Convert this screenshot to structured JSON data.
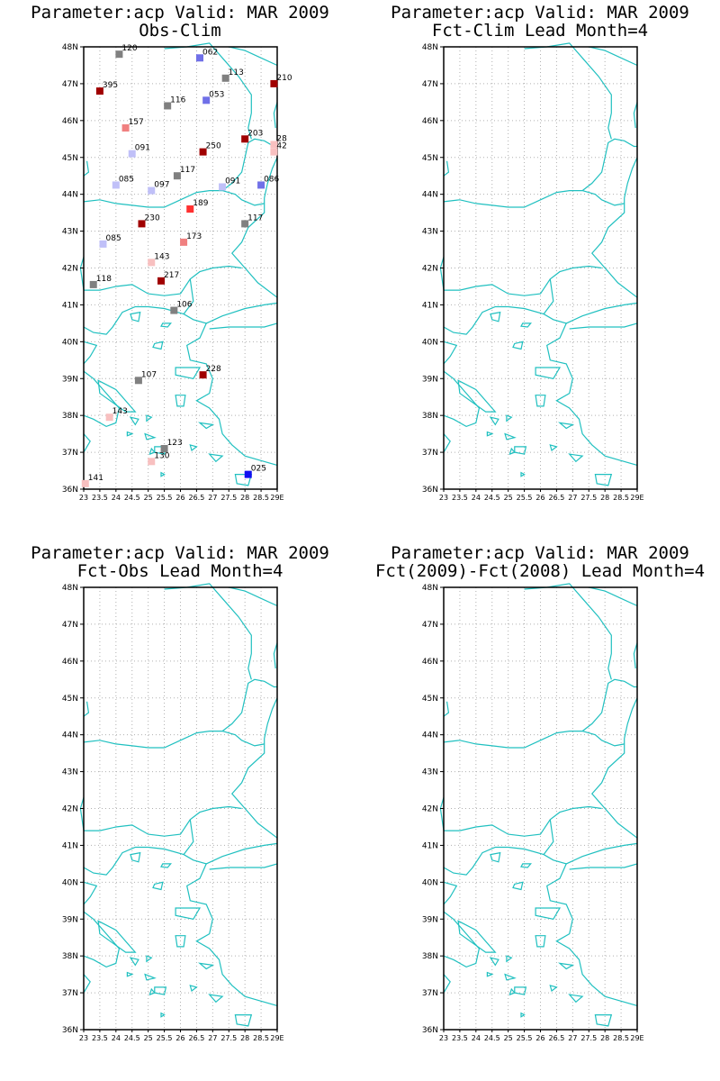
{
  "lat_labels": [
    "48N",
    "47N",
    "46N",
    "45N",
    "44N",
    "43N",
    "42N",
    "41N",
    "40N",
    "39N",
    "38N",
    "37N",
    "36N"
  ],
  "lon_labels": [
    "23",
    "23.5",
    "24",
    "24.5",
    "25",
    "25.5",
    "26",
    "26.5",
    "27",
    "27.5",
    "28",
    "28.5",
    "29E"
  ],
  "panels": [
    {
      "title": "Parameter:acp Valid: MAR 2009",
      "subtitle": "Obs-Clim"
    },
    {
      "title": "Parameter:acp Valid: MAR 2009",
      "subtitle": "Fct-Clim Lead Month=4"
    },
    {
      "title": "Parameter:acp Valid: MAR 2009",
      "subtitle": "Fct-Obs Lead Month=4"
    },
    {
      "title": "Parameter:acp Valid: MAR 2009",
      "subtitle": "Fct(2009)-Fct(2008) Lead Month=4"
    }
  ],
  "colors": {
    "coast": "#20c0c0",
    "grid": "#b0b0b0",
    "dark_red": "#a00000",
    "red": "#ff3030",
    "salmon": "#f08080",
    "pink": "#f8c0c0",
    "gray": "#808080",
    "lavender": "#c0c0f8",
    "blue_mid": "#7070e8",
    "blue": "#1010f0"
  },
  "stations": [
    {
      "lon": 24.1,
      "lat": 47.8,
      "label": "120",
      "color": "gray"
    },
    {
      "lon": 26.6,
      "lat": 47.7,
      "label": "062",
      "color": "blue_mid"
    },
    {
      "lon": 27.4,
      "lat": 47.15,
      "label": "113",
      "color": "gray"
    },
    {
      "lon": 28.9,
      "lat": 47.0,
      "label": "210",
      "color": "dark_red"
    },
    {
      "lon": 23.5,
      "lat": 46.8,
      "label": "395",
      "color": "dark_red"
    },
    {
      "lon": 25.6,
      "lat": 46.4,
      "label": "116",
      "color": "gray"
    },
    {
      "lon": 26.8,
      "lat": 46.55,
      "label": "053",
      "color": "blue_mid"
    },
    {
      "lon": 24.3,
      "lat": 45.8,
      "label": "157",
      "color": "salmon"
    },
    {
      "lon": 28.0,
      "lat": 45.5,
      "label": "203",
      "color": "dark_red"
    },
    {
      "lon": 28.9,
      "lat": 45.35,
      "label": "28",
      "color": "pink"
    },
    {
      "lon": 28.9,
      "lat": 45.15,
      "label": "42",
      "color": "pink"
    },
    {
      "lon": 24.5,
      "lat": 45.1,
      "label": "091",
      "color": "lavender"
    },
    {
      "lon": 26.7,
      "lat": 45.15,
      "label": "250",
      "color": "dark_red"
    },
    {
      "lon": 25.9,
      "lat": 44.5,
      "label": "117",
      "color": "gray"
    },
    {
      "lon": 24.0,
      "lat": 44.25,
      "label": "085",
      "color": "lavender"
    },
    {
      "lon": 25.1,
      "lat": 44.1,
      "label": "097",
      "color": "lavender"
    },
    {
      "lon": 27.3,
      "lat": 44.2,
      "label": "091",
      "color": "lavender"
    },
    {
      "lon": 28.5,
      "lat": 44.25,
      "label": "086",
      "color": "blue_mid"
    },
    {
      "lon": 26.3,
      "lat": 43.6,
      "label": "189",
      "color": "red"
    },
    {
      "lon": 24.8,
      "lat": 43.2,
      "label": "230",
      "color": "dark_red"
    },
    {
      "lon": 28.0,
      "lat": 43.2,
      "label": "117",
      "color": "gray"
    },
    {
      "lon": 23.6,
      "lat": 42.65,
      "label": "085",
      "color": "lavender"
    },
    {
      "lon": 26.1,
      "lat": 42.7,
      "label": "173",
      "color": "salmon"
    },
    {
      "lon": 25.1,
      "lat": 42.15,
      "label": "143",
      "color": "pink"
    },
    {
      "lon": 25.4,
      "lat": 41.65,
      "label": "217",
      "color": "dark_red"
    },
    {
      "lon": 23.3,
      "lat": 41.55,
      "label": "118",
      "color": "gray"
    },
    {
      "lon": 25.8,
      "lat": 40.85,
      "label": "106",
      "color": "gray"
    },
    {
      "lon": 26.7,
      "lat": 39.1,
      "label": "228",
      "color": "dark_red"
    },
    {
      "lon": 24.7,
      "lat": 38.95,
      "label": "107",
      "color": "gray"
    },
    {
      "lon": 23.8,
      "lat": 37.95,
      "label": "143",
      "color": "pink"
    },
    {
      "lon": 25.5,
      "lat": 37.1,
      "label": "123",
      "color": "gray"
    },
    {
      "lon": 25.1,
      "lat": 36.75,
      "label": "130",
      "color": "pink"
    },
    {
      "lon": 28.1,
      "lat": 36.4,
      "label": "025",
      "color": "blue"
    },
    {
      "lon": 23.05,
      "lat": 36.15,
      "label": "141",
      "color": "pink"
    }
  ]
}
